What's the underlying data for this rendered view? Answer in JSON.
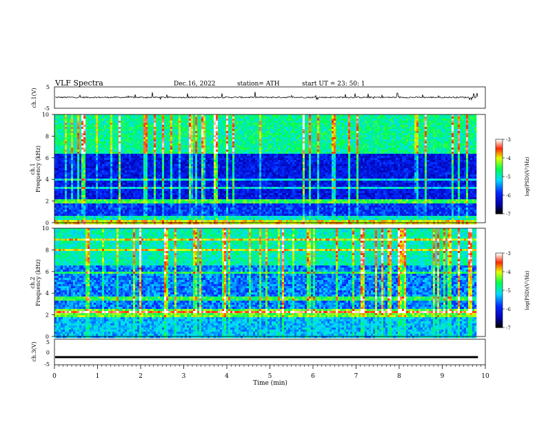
{
  "header": {
    "title": "VLF  Spectra",
    "date": "Dec.16, 2022",
    "station": "station= ATH",
    "start": "start  UT  =    23: 50: 1"
  },
  "chart_data": [
    {
      "type": "line",
      "ylabel": "ch.1(V)",
      "ylim": [
        -5,
        5
      ],
      "y_ticks": [
        "5",
        "-5"
      ],
      "description_level": "trace near 0 V with spikes",
      "baseline": 0.1
    },
    {
      "type": "heatmap",
      "ylabel": "ch.1\nFrequency (kHz)",
      "ylabel_line1": "ch.1",
      "ylabel_line2": "Frequency (kHz)",
      "ylim": [
        0,
        10
      ],
      "y_ticks": [
        "0",
        "2",
        "4",
        "6",
        "8",
        "10"
      ],
      "colorbar": {
        "label": "log(PSD)(V²/Hz)",
        "range": [
          -7,
          -3
        ],
        "ticks": [
          "-3",
          "-4",
          "-5",
          "-6",
          "-7"
        ]
      }
    },
    {
      "type": "heatmap",
      "ylabel": "ch.2\nFrequency (kHz)",
      "ylabel_line1": "ch.2",
      "ylabel_line2": "Frequency (kHz)",
      "ylim": [
        0,
        10
      ],
      "y_ticks": [
        "0",
        "2",
        "4",
        "6",
        "8",
        "10"
      ],
      "colorbar": {
        "label": "log(PSD)(V²/Hz)",
        "range": [
          -7,
          -3
        ],
        "ticks": [
          "-3",
          "-4",
          "-5",
          "-6",
          "-7"
        ]
      }
    },
    {
      "type": "line",
      "ylabel": "ch.3(V)",
      "ylim": [
        -5,
        5
      ],
      "y_ticks": [
        "5",
        "0",
        "-5"
      ],
      "baseline": -2
    }
  ],
  "xaxis": {
    "label": "Time  (min)",
    "range": [
      0,
      10
    ],
    "ticks": [
      "0",
      "1",
      "2",
      "3",
      "4",
      "5",
      "6",
      "7",
      "8",
      "9",
      "10"
    ],
    "data_end": 9.83
  },
  "colors": {
    "scale": [
      "#000000",
      "#0000ff",
      "#00ffff",
      "#00ff00",
      "#ffff00",
      "#ff0000",
      "#ffffff"
    ]
  }
}
